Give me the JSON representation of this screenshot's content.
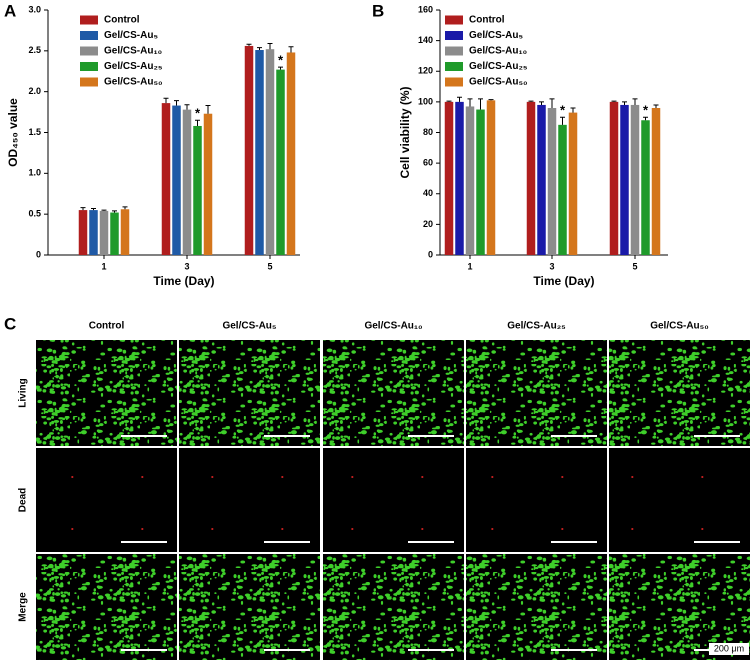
{
  "chart_data": [
    {
      "type": "bar",
      "panel": "A",
      "xlabel": "Time (Day)",
      "ylabel": "OD₄₅₀ value",
      "categories": [
        "1",
        "3",
        "5"
      ],
      "ylim": [
        0,
        3
      ],
      "yticks": [
        0,
        0.5,
        {
          "value": 1,
          "label": "1.0"
        },
        1.5,
        {
          "value": 2,
          "label": "2.0"
        },
        2.5,
        {
          "value": 3,
          "label": "3.0"
        }
      ],
      "series": [
        {
          "name": "Control",
          "color": "#b01e1e",
          "values": [
            0.55,
            1.86,
            2.56
          ],
          "errors": [
            0.03,
            0.06,
            0.02
          ]
        },
        {
          "name": "Gel/CS-Au₅",
          "color": "#1f5aa6",
          "values": [
            0.55,
            1.83,
            2.51
          ],
          "errors": [
            0.02,
            0.06,
            0.03
          ]
        },
        {
          "name": "Gel/CS-Au₁₀",
          "color": "#8c8c8c",
          "values": [
            0.54,
            1.78,
            2.52
          ],
          "errors": [
            0.01,
            0.06,
            0.07
          ]
        },
        {
          "name": "Gel/CS-Au₂₅",
          "color": "#1f9a2a",
          "values": [
            0.52,
            1.58,
            2.27
          ],
          "errors": [
            0.02,
            0.07,
            0.03
          ],
          "significance": [
            null,
            "*",
            "*"
          ]
        },
        {
          "name": "Gel/CS-Au₅₀",
          "color": "#d4761c",
          "values": [
            0.56,
            1.73,
            2.48
          ],
          "errors": [
            0.03,
            0.1,
            0.07
          ]
        }
      ]
    },
    {
      "type": "bar",
      "panel": "B",
      "xlabel": "Time (Day)",
      "ylabel": "Cell viability (%)",
      "categories": [
        "1",
        "3",
        "5"
      ],
      "ylim": [
        0,
        160
      ],
      "yticks": [
        0,
        20,
        40,
        60,
        80,
        100,
        120,
        140,
        160
      ],
      "series": [
        {
          "name": "Control",
          "color": "#b01e1e",
          "values": [
            100,
            100,
            100
          ],
          "errors": [
            0.5,
            0.5,
            0.5
          ]
        },
        {
          "name": "Gel/CS-Au₅",
          "color": "#1a1aa8",
          "values": [
            100,
            98,
            98
          ],
          "errors": [
            3,
            2,
            2
          ]
        },
        {
          "name": "Gel/CS-Au₁₀",
          "color": "#8c8c8c",
          "values": [
            97,
            96,
            98
          ],
          "errors": [
            5,
            6,
            4
          ]
        },
        {
          "name": "Gel/CS-Au₂₅",
          "color": "#1f9a2a",
          "values": [
            95,
            85,
            88
          ],
          "errors": [
            7,
            5,
            2
          ],
          "significance": [
            null,
            "*",
            "*"
          ]
        },
        {
          "name": "Gel/CS-Au₅₀",
          "color": "#d4761c",
          "values": [
            101,
            93,
            96
          ],
          "errors": [
            0.5,
            3,
            2
          ]
        }
      ]
    }
  ],
  "panel_c": {
    "label": "C",
    "columns": [
      "Control",
      "Gel/CS-Au₅",
      "Gel/CS-Au₁₀",
      "Gel/CS-Au₂₅",
      "Gel/CS-Au₅₀"
    ],
    "rows": [
      "Living",
      "Dead",
      "Merge"
    ],
    "scale_bar": "200 μm"
  }
}
